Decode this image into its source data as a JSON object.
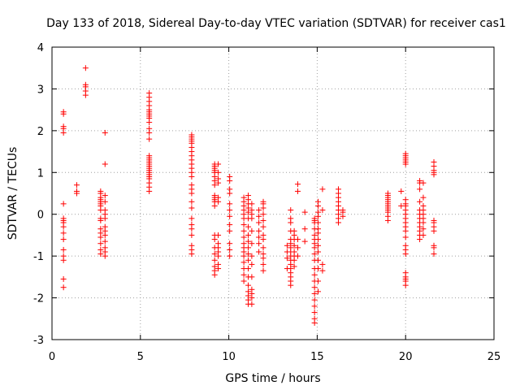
{
  "chart_data": {
    "type": "scatter",
    "title": "Day 133 of 2018, Sidereal Day-to-day VTEC variation (SDTVAR) for receiver cas1",
    "xlabel": "GPS time / hours",
    "ylabel": "SDTVAR / TECUs",
    "xlim": [
      0,
      25
    ],
    "ylim": [
      -3,
      4
    ],
    "x_ticks": [
      0,
      5,
      10,
      15,
      20,
      25
    ],
    "y_ticks": [
      -3,
      -2,
      -1,
      0,
      1,
      2,
      3,
      4
    ],
    "x_tick_labels": [
      "0",
      "5",
      "10",
      "15",
      "20",
      "25"
    ],
    "y_tick_labels": [
      "-3",
      "-2",
      "-1",
      "0",
      "1",
      "2",
      "3",
      "4"
    ],
    "grid": true,
    "marker": "+",
    "color": "#ff0000",
    "clusters": [
      {
        "x": 0.65,
        "y": [
          -1.75,
          -1.55,
          -1.1,
          -1.0,
          -0.85,
          -0.6,
          -0.45,
          -0.3,
          -0.2,
          -0.15,
          -0.1,
          0.25,
          1.95,
          2.05,
          2.1,
          2.4,
          2.45
        ]
      },
      {
        "x": 1.4,
        "y": [
          0.5,
          0.55,
          0.7
        ]
      },
      {
        "x": 1.9,
        "y": [
          2.85,
          2.95,
          3.05,
          3.1,
          3.5
        ]
      },
      {
        "x": 2.75,
        "y": [
          -0.95,
          -0.85,
          -0.7,
          -0.55,
          -0.45,
          -0.35,
          -0.15,
          -0.1,
          0.1,
          0.2,
          0.25,
          0.3,
          0.35,
          0.4,
          0.5,
          0.55
        ]
      },
      {
        "x": 3.0,
        "y": [
          -1.0,
          -0.9,
          -0.8,
          -0.65,
          -0.5,
          -0.4,
          -0.3,
          -0.1,
          0.0,
          0.1,
          0.3,
          0.45,
          1.2,
          1.95
        ]
      },
      {
        "x": 5.5,
        "y": [
          0.55,
          0.65,
          0.75,
          0.85,
          0.9,
          0.95,
          1.0,
          1.05,
          1.1,
          1.15,
          1.2,
          1.25,
          1.3,
          1.35,
          1.4,
          1.8,
          1.95,
          2.05,
          2.2,
          2.3,
          2.35,
          2.4,
          2.45,
          2.5,
          2.6,
          2.7,
          2.8,
          2.9
        ]
      },
      {
        "x": 7.9,
        "y": [
          -0.95,
          -0.85,
          -0.75,
          -0.5,
          -0.35,
          -0.25,
          -0.1,
          0.15,
          0.3,
          0.5,
          0.6,
          0.7,
          0.9,
          1.0,
          1.1,
          1.2,
          1.3,
          1.4,
          1.5,
          1.6,
          1.7,
          1.75,
          1.8,
          1.85,
          1.9
        ]
      },
      {
        "x": 9.2,
        "y": [
          -1.45,
          -1.35,
          -1.25,
          -1.1,
          -0.95,
          -0.8,
          -0.6,
          -0.5,
          0.2,
          0.3,
          0.35,
          0.4,
          0.45,
          0.7,
          0.8,
          0.9,
          1.0,
          1.05,
          1.1,
          1.15,
          1.2
        ]
      },
      {
        "x": 9.4,
        "y": [
          -1.3,
          -1.2,
          -1.0,
          -0.9,
          -0.8,
          -0.7,
          -0.5,
          0.3,
          0.4,
          0.75,
          0.85,
          1.0,
          1.2
        ]
      },
      {
        "x": 10.05,
        "y": [
          -1.0,
          -0.85,
          -0.7,
          -0.4,
          -0.25,
          -0.05,
          0.1,
          0.25,
          0.5,
          0.6,
          0.8,
          0.9
        ]
      },
      {
        "x": 10.85,
        "y": [
          -1.6,
          -1.45,
          -1.3,
          -1.15,
          -1.0,
          -0.9,
          -0.8,
          -0.7,
          -0.55,
          -0.4,
          -0.25,
          -0.1,
          0.0,
          0.1,
          0.2,
          0.3,
          0.4
        ]
      },
      {
        "x": 11.1,
        "y": [
          -2.15,
          -2.05,
          -1.95,
          -1.85,
          -1.7,
          -1.5,
          -1.3,
          -1.1,
          -0.95,
          -0.8,
          -0.65,
          -0.5,
          -0.3,
          -0.1,
          0.05,
          0.15,
          0.25,
          0.35,
          0.45
        ]
      },
      {
        "x": 11.3,
        "y": [
          -2.15,
          -2.0,
          -1.9,
          -1.8,
          -1.5,
          -1.2,
          -1.0,
          -0.7,
          -0.4,
          -0.1,
          0.0,
          0.1,
          0.25
        ]
      },
      {
        "x": 11.7,
        "y": [
          -0.9,
          -0.7,
          -0.55,
          -0.4,
          -0.2,
          -0.05,
          0.1
        ]
      },
      {
        "x": 11.95,
        "y": [
          -1.35,
          -1.2,
          -1.05,
          -0.95,
          -0.8,
          -0.6,
          -0.5,
          -0.3,
          -0.15,
          0.0,
          0.15,
          0.25,
          0.3
        ]
      },
      {
        "x": 13.3,
        "y": [
          -1.3,
          -1.05,
          -0.9,
          -0.75
        ]
      },
      {
        "x": 13.5,
        "y": [
          -1.7,
          -1.6,
          -1.5,
          -1.4,
          -1.3,
          -1.2,
          -1.1,
          -1.0,
          -0.9,
          -0.8,
          -0.7,
          -0.6,
          -0.4,
          -0.2,
          -0.1,
          0.1
        ]
      },
      {
        "x": 13.7,
        "y": [
          -1.25,
          -1.1,
          -1.0,
          -0.9,
          -0.75,
          -0.6,
          -0.5,
          -0.4
        ]
      },
      {
        "x": 13.9,
        "y": [
          -1.0,
          -0.8,
          -0.6,
          0.55,
          0.72
        ]
      },
      {
        "x": 14.3,
        "y": [
          -0.65,
          -0.35,
          0.05
        ]
      },
      {
        "x": 14.85,
        "y": [
          -2.6,
          -2.5,
          -2.35,
          -2.2,
          -2.05,
          -1.9,
          -1.75,
          -1.6,
          -1.45,
          -1.3,
          -1.1,
          -0.95,
          -0.8,
          -0.7,
          -0.6,
          -0.5,
          -0.35,
          -0.2,
          -0.15,
          -0.1
        ]
      },
      {
        "x": 15.05,
        "y": [
          -1.85,
          -1.6,
          -1.3,
          -1.1,
          -0.9,
          -0.75,
          -0.6,
          -0.45,
          -0.35,
          -0.2,
          -0.05,
          0.05,
          0.2,
          0.3
        ]
      },
      {
        "x": 15.3,
        "y": [
          -1.35,
          -1.2,
          0.1,
          0.6
        ]
      },
      {
        "x": 16.2,
        "y": [
          -0.2,
          -0.1,
          0.0,
          0.1,
          0.2,
          0.3,
          0.4,
          0.5,
          0.6
        ]
      },
      {
        "x": 16.45,
        "y": [
          -0.05,
          0.05,
          0.1
        ]
      },
      {
        "x": 19.0,
        "y": [
          -0.15,
          -0.05,
          0.05,
          0.1,
          0.15,
          0.2,
          0.25,
          0.3,
          0.35,
          0.4,
          0.45,
          0.5
        ]
      },
      {
        "x": 19.75,
        "y": [
          0.2,
          0.55
        ]
      },
      {
        "x": 20.0,
        "y": [
          -1.7,
          -1.6,
          -1.55,
          -1.5,
          -1.4,
          -0.95,
          -0.85,
          -0.75,
          -0.55,
          -0.4,
          -0.3,
          -0.2,
          -0.1,
          0.0,
          0.1,
          0.2,
          0.25,
          0.35,
          1.2,
          1.25,
          1.3,
          1.35,
          1.4,
          1.45
        ]
      },
      {
        "x": 20.8,
        "y": [
          -0.6,
          -0.5,
          -0.4,
          -0.3,
          -0.2,
          -0.1,
          0.0,
          0.1,
          0.3,
          0.6,
          0.75,
          0.8
        ]
      },
      {
        "x": 21.0,
        "y": [
          -0.5,
          -0.35,
          -0.2,
          -0.1,
          0.0,
          0.1,
          0.2,
          0.4,
          0.75
        ]
      },
      {
        "x": 21.6,
        "y": [
          -0.95,
          -0.8,
          -0.75,
          -0.4,
          -0.3,
          -0.2,
          -0.15,
          0.95,
          1.0,
          1.05,
          1.15,
          1.25
        ]
      }
    ]
  }
}
